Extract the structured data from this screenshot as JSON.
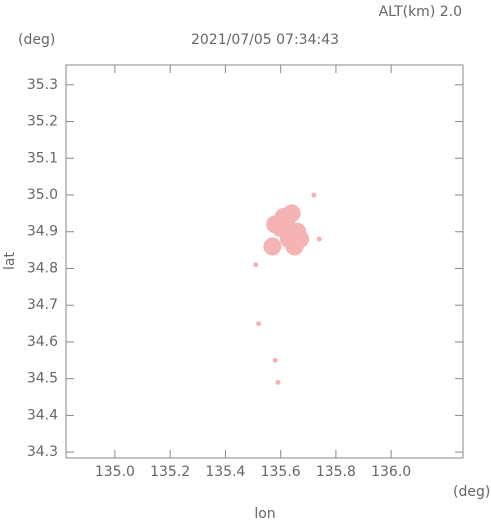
{
  "chart_data": {
    "type": "scatter",
    "title": "2021/07/05 07:34:43",
    "annotation": "ALT(km) 2.0",
    "y_unit": "(deg)",
    "x_unit": "(deg)",
    "x_label": "lon",
    "y_label": "lat",
    "color": "#f5b3b3",
    "x": [
      135.62,
      135.64,
      135.6,
      135.66,
      135.63,
      135.65,
      135.58,
      135.61,
      135.57,
      135.67,
      135.72,
      135.74,
      135.51,
      135.52,
      135.58,
      135.59
    ],
    "values": [
      34.93,
      34.95,
      34.91,
      34.9,
      34.88,
      34.86,
      34.92,
      34.94,
      34.86,
      34.88,
      35.0,
      34.88,
      34.81,
      34.65,
      34.55,
      34.49
    ],
    "xlim": [
      134.823,
      136.26
    ],
    "ylim": [
      34.284,
      35.354
    ],
    "xticks": [
      {
        "value": 135,
        "label": "135.0"
      },
      135.2,
      135.4,
      135.6,
      135.8,
      {
        "value": 136,
        "label": "136.0"
      }
    ],
    "yticks": [
      34.3,
      34.4,
      34.5,
      34.6,
      34.7,
      34.8,
      34.9,
      {
        "value": 35,
        "label": "35.0"
      },
      35.1,
      35.2,
      35.3
    ]
  }
}
